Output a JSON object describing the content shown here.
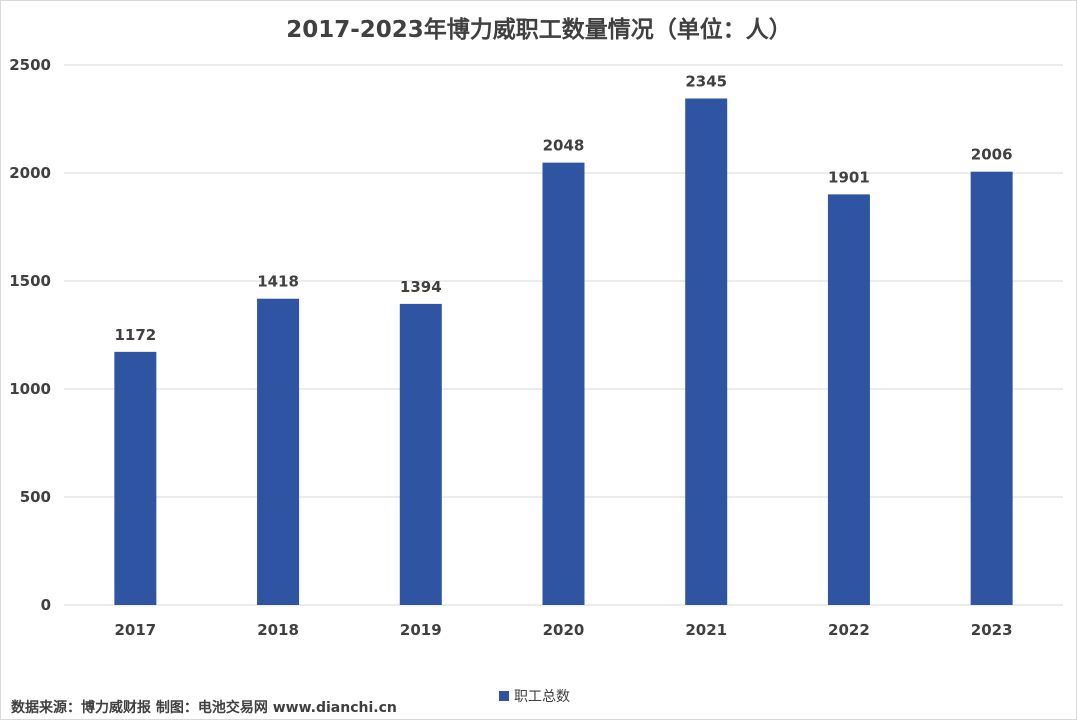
{
  "chart_data": {
    "type": "bar",
    "title": "2017-2023年博力威职工数量情况（单位：人）",
    "categories": [
      "2017",
      "2018",
      "2019",
      "2020",
      "2021",
      "2022",
      "2023"
    ],
    "series": [
      {
        "name": "职工总数",
        "values": [
          1172,
          1418,
          1394,
          2048,
          2345,
          1901,
          2006
        ]
      }
    ],
    "ylim": [
      0,
      2500
    ],
    "yticks": [
      0,
      500,
      1000,
      1500,
      2000,
      2500
    ],
    "grid": true,
    "legend_position": "bottom",
    "data_labels": true,
    "colors": {
      "bar": "#2e54a2",
      "grid": "#d9d9d9",
      "text": "#404040"
    }
  },
  "source_note": "数据来源：博力威财报  制图：电池交易网 www.dianchi.cn"
}
